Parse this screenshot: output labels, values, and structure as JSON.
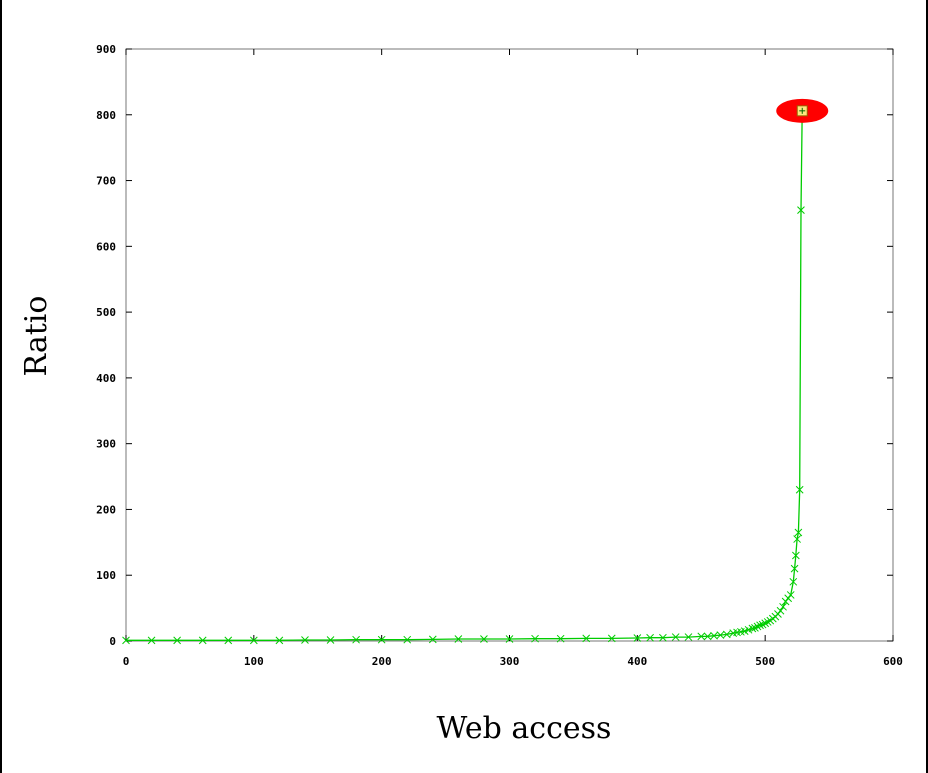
{
  "chart_data": {
    "type": "line",
    "title": "",
    "xlabel": "Web access",
    "ylabel": "Ratio",
    "xlim": [
      0,
      600
    ],
    "ylim": [
      0,
      900
    ],
    "xticks": [
      "0",
      "100",
      "200",
      "300",
      "400",
      "500",
      "600"
    ],
    "yticks": [
      "0",
      "100",
      "200",
      "300",
      "400",
      "500",
      "600",
      "700",
      "800",
      "900"
    ],
    "grid": false,
    "legend": "none",
    "marker": "x",
    "series_color": "#00cc00",
    "highlight_color": "#ff0000",
    "series": [
      {
        "x": [
          0,
          20,
          40,
          60,
          80,
          100,
          120,
          140,
          160,
          180,
          200,
          220,
          240,
          260,
          280,
          300,
          320,
          340,
          360,
          380,
          400,
          410,
          420,
          430,
          440,
          450,
          455,
          460,
          465,
          470,
          475,
          478,
          481,
          484,
          487,
          490,
          492,
          494,
          496,
          498,
          500,
          502,
          504,
          506,
          508,
          510,
          512,
          514,
          516,
          518,
          520,
          522,
          523,
          524,
          525,
          526,
          527,
          528,
          529
        ],
        "y": [
          1,
          1,
          1,
          1,
          1,
          1,
          1,
          1.5,
          1.5,
          2,
          2,
          2,
          2.5,
          3,
          3,
          3,
          3.5,
          3.5,
          4,
          4,
          4.5,
          5,
          5,
          6,
          6,
          7,
          7,
          8,
          9,
          10,
          12,
          13,
          14,
          15,
          17,
          19,
          20,
          22,
          24,
          25,
          27,
          29,
          31,
          34,
          37,
          41,
          46,
          52,
          60,
          65,
          70,
          90,
          110,
          130,
          155,
          165,
          230,
          655,
          806
        ]
      }
    ],
    "highlight_point": {
      "x": 529,
      "y": 806
    }
  }
}
